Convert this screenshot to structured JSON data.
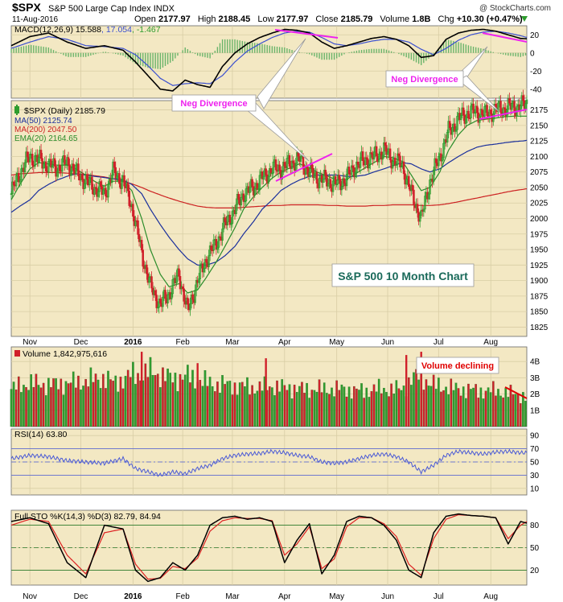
{
  "header": {
    "symbol": "$SPX",
    "name": "S&P 500 Large Cap Index",
    "exchange": "INDX",
    "watermark": "@ StockCharts.com",
    "date": "11-Aug-2016",
    "open_label": "Open",
    "open": "2177.97",
    "high_label": "High",
    "high": "2188.45",
    "low_label": "Low",
    "low": "2177.97",
    "close_label": "Close",
    "close": "2185.79",
    "volume_label": "Volume",
    "volume": "1.8B",
    "chg_label": "Chg",
    "chg": "+10.30 (+0.47%)"
  },
  "colors": {
    "bg": "#f3e8c3",
    "up": "#2e9c2e",
    "down": "#d0202a",
    "macd": "#000000",
    "signal": "#3a4fd0",
    "ma50": "#1a2f9c",
    "ma200": "#cc2222",
    "ema20": "#2a8c2a",
    "rsi": "#4a5ad6",
    "stoK": "#000000",
    "stoD": "#dd2222",
    "annotation": "#ee22ee"
  },
  "legends": {
    "macd": {
      "label": "MACD(12,26,9)",
      "v1": "15.588",
      "v2": "17.054",
      "v3": "-1.467"
    },
    "price": [
      {
        "text": "$SPX (Daily) 2185.79"
      },
      {
        "text": "MA(50) 2125.74"
      },
      {
        "text": "MA(200) 2047.50"
      },
      {
        "text": "EMA(20) 2164.65"
      }
    ],
    "volume": "Volume 1,842,975,616",
    "rsi": "RSI(14) 63.80",
    "sto": "Full STO %K(14,3) %D(3) 82.79, 84.94"
  },
  "annotations": {
    "neg_div_1": "Neg Divergence",
    "neg_div_2": "Neg Divergence",
    "volume": "Volume declining",
    "chart_title": "S&P 500 10 Month Chart"
  },
  "x_axis": {
    "month_labels": [
      "Nov",
      "Dec",
      "2016",
      "Feb",
      "Mar",
      "Apr",
      "May",
      "Jun",
      "Jul",
      "Aug"
    ],
    "month_start_days": [
      15,
      56,
      98,
      138,
      178,
      220,
      262,
      303,
      344,
      386
    ],
    "total_days": 415
  },
  "chart_data": [
    {
      "type": "line",
      "panel": "MACD",
      "y_ticks": [
        "20",
        "0",
        "-20",
        "-40"
      ],
      "ylim": [
        -50,
        30
      ],
      "x_days": [
        0,
        15,
        30,
        45,
        60,
        75,
        90,
        100,
        110,
        120,
        130,
        140,
        150,
        160,
        170,
        180,
        190,
        200,
        210,
        220,
        230,
        240,
        250,
        260,
        270,
        280,
        290,
        300,
        310,
        320,
        330,
        340,
        350,
        360,
        370,
        380,
        390,
        400,
        410,
        415
      ],
      "series": [
        {
          "name": "MACD",
          "values": [
            8,
            18,
            22,
            12,
            5,
            8,
            3,
            -10,
            -25,
            -40,
            -42,
            -30,
            -35,
            -38,
            -15,
            0,
            10,
            17,
            22,
            26,
            25,
            22,
            12,
            5,
            8,
            12,
            16,
            18,
            15,
            8,
            -5,
            -3,
            15,
            22,
            25,
            26,
            24,
            20,
            16,
            15.6
          ]
        },
        {
          "name": "Signal",
          "values": [
            5,
            12,
            18,
            15,
            8,
            7,
            5,
            -2,
            -14,
            -28,
            -36,
            -34,
            -33,
            -34,
            -25,
            -10,
            2,
            10,
            17,
            22,
            24,
            23,
            17,
            10,
            8,
            10,
            13,
            15,
            15,
            12,
            4,
            -2,
            5,
            14,
            20,
            23,
            24,
            22,
            19,
            17.1
          ]
        }
      ]
    },
    {
      "type": "line",
      "panel": "Price",
      "y_ticks": [
        1825,
        1850,
        1875,
        1900,
        1925,
        1950,
        1975,
        2000,
        2025,
        2050,
        2075,
        2100,
        2125,
        2150,
        2175
      ],
      "ylim": [
        1810,
        2190
      ],
      "x_days": [
        0,
        7,
        15,
        22,
        30,
        37,
        45,
        52,
        60,
        67,
        75,
        82,
        90,
        97,
        105,
        112,
        120,
        127,
        135,
        142,
        150,
        157,
        165,
        172,
        180,
        187,
        195,
        202,
        210,
        217,
        225,
        232,
        240,
        247,
        255,
        262,
        270,
        277,
        285,
        292,
        300,
        307,
        315,
        322,
        330,
        337,
        345,
        352,
        360,
        367,
        375,
        382,
        390,
        397,
        405,
        412,
        415
      ],
      "series": [
        {
          "name": "$SPX (Daily)",
          "values": [
            2040,
            2075,
            2100,
            2095,
            2085,
            2082,
            2090,
            2075,
            2060,
            2050,
            2040,
            2075,
            2060,
            2020,
            1945,
            1890,
            1860,
            1880,
            1910,
            1850,
            1900,
            1935,
            1960,
            1990,
            2015,
            2040,
            2050,
            2065,
            2080,
            2080,
            2090,
            2095,
            2075,
            2065,
            2060,
            2055,
            2065,
            2085,
            2095,
            2100,
            2110,
            2095,
            2085,
            2040,
            2000,
            2060,
            2100,
            2140,
            2160,
            2170,
            2172,
            2168,
            2175,
            2178,
            2180,
            2182,
            2186
          ]
        },
        {
          "name": "MA(50)",
          "values": [
            2010,
            2020,
            2030,
            2045,
            2055,
            2062,
            2068,
            2072,
            2070,
            2068,
            2066,
            2064,
            2062,
            2055,
            2040,
            2015,
            1990,
            1970,
            1950,
            1935,
            1925,
            1925,
            1930,
            1940,
            1955,
            1975,
            1995,
            2015,
            2030,
            2045,
            2055,
            2062,
            2068,
            2070,
            2070,
            2070,
            2068,
            2068,
            2070,
            2075,
            2080,
            2085,
            2090,
            2088,
            2080,
            2075,
            2080,
            2090,
            2100,
            2108,
            2115,
            2118,
            2120,
            2122,
            2124,
            2125,
            2126
          ]
        },
        {
          "name": "MA(200)",
          "values": [
            2070,
            2072,
            2073,
            2074,
            2074,
            2074,
            2073,
            2072,
            2071,
            2069,
            2067,
            2064,
            2060,
            2056,
            2050,
            2044,
            2038,
            2033,
            2028,
            2024,
            2020,
            2018,
            2017,
            2017,
            2017,
            2018,
            2019,
            2020,
            2021,
            2021,
            2022,
            2022,
            2022,
            2022,
            2021,
            2021,
            2020,
            2020,
            2020,
            2021,
            2021,
            2022,
            2022,
            2022,
            2021,
            2021,
            2022,
            2024,
            2027,
            2030,
            2033,
            2036,
            2039,
            2042,
            2045,
            2047,
            2048
          ]
        },
        {
          "name": "EMA(20)",
          "values": [
            2030,
            2055,
            2080,
            2090,
            2088,
            2086,
            2086,
            2080,
            2070,
            2060,
            2052,
            2060,
            2060,
            2045,
            2000,
            1950,
            1910,
            1890,
            1895,
            1880,
            1885,
            1905,
            1930,
            1955,
            1985,
            2015,
            2035,
            2050,
            2065,
            2075,
            2082,
            2088,
            2082,
            2074,
            2068,
            2062,
            2063,
            2072,
            2082,
            2090,
            2100,
            2098,
            2092,
            2070,
            2045,
            2050,
            2075,
            2110,
            2135,
            2150,
            2158,
            2160,
            2162,
            2164,
            2165,
            2165,
            2165
          ]
        }
      ]
    },
    {
      "type": "bar",
      "panel": "Volume",
      "y_ticks": [
        "4B",
        "3B",
        "2B",
        "1B"
      ],
      "ylim": [
        0,
        4.9
      ],
      "x_days": [
        0,
        7,
        15,
        22,
        30,
        37,
        45,
        52,
        60,
        67,
        75,
        82,
        90,
        97,
        105,
        112,
        120,
        127,
        135,
        142,
        150,
        157,
        165,
        172,
        180,
        187,
        195,
        202,
        210,
        217,
        225,
        232,
        240,
        247,
        255,
        262,
        270,
        277,
        285,
        292,
        300,
        307,
        315,
        322,
        330,
        337,
        345,
        352,
        360,
        367,
        375,
        382,
        390,
        397,
        405,
        412,
        415
      ],
      "values": [
        2.3,
        2.5,
        2.7,
        2.6,
        2.6,
        2.6,
        2.7,
        2.7,
        2.8,
        2.9,
        3.0,
        2.7,
        2.9,
        3.2,
        3.2,
        3.4,
        3.2,
        3.0,
        3.0,
        3.1,
        2.9,
        2.7,
        2.6,
        2.6,
        2.5,
        2.5,
        2.4,
        2.4,
        2.5,
        2.4,
        2.4,
        2.3,
        2.3,
        2.3,
        2.3,
        2.3,
        2.3,
        2.2,
        2.2,
        2.3,
        2.3,
        2.3,
        2.3,
        2.9,
        3.2,
        2.6,
        2.5,
        2.4,
        2.3,
        2.3,
        2.2,
        2.2,
        2.2,
        2.1,
        2.0,
        1.9,
        1.8
      ]
    },
    {
      "type": "line",
      "panel": "RSI",
      "y_ticks": [
        90,
        70,
        50,
        30,
        10
      ],
      "ylim": [
        0,
        100
      ],
      "x_days": [
        0,
        15,
        30,
        45,
        60,
        75,
        90,
        100,
        110,
        120,
        130,
        140,
        150,
        160,
        170,
        180,
        190,
        200,
        210,
        220,
        230,
        240,
        250,
        260,
        270,
        280,
        290,
        300,
        310,
        320,
        330,
        340,
        350,
        360,
        370,
        380,
        390,
        400,
        410,
        415
      ],
      "values": [
        55,
        60,
        58,
        52,
        50,
        48,
        55,
        40,
        35,
        30,
        35,
        32,
        40,
        45,
        55,
        60,
        62,
        63,
        66,
        64,
        60,
        58,
        50,
        48,
        50,
        55,
        60,
        62,
        58,
        50,
        35,
        45,
        60,
        66,
        64,
        62,
        65,
        66,
        64,
        63.8
      ]
    },
    {
      "type": "line",
      "panel": "Full STO",
      "y_ticks": [
        80,
        50,
        20
      ],
      "ylim": [
        0,
        100
      ],
      "x_days": [
        0,
        15,
        30,
        45,
        60,
        75,
        90,
        100,
        110,
        120,
        130,
        140,
        150,
        160,
        170,
        180,
        190,
        200,
        210,
        220,
        230,
        240,
        250,
        260,
        270,
        280,
        290,
        300,
        310,
        320,
        330,
        340,
        350,
        360,
        370,
        380,
        390,
        400,
        410,
        415
      ],
      "series": [
        {
          "name": "%K",
          "values": [
            85,
            90,
            82,
            30,
            10,
            80,
            75,
            20,
            5,
            10,
            30,
            20,
            40,
            80,
            90,
            92,
            88,
            90,
            85,
            30,
            60,
            82,
            15,
            40,
            85,
            92,
            90,
            80,
            60,
            20,
            10,
            70,
            92,
            95,
            93,
            92,
            90,
            55,
            85,
            82.8
          ]
        },
        {
          "name": "%D",
          "values": [
            80,
            88,
            85,
            40,
            15,
            70,
            75,
            28,
            8,
            9,
            25,
            22,
            36,
            72,
            86,
            90,
            89,
            89,
            86,
            40,
            55,
            78,
            22,
            35,
            78,
            90,
            90,
            82,
            65,
            28,
            13,
            62,
            88,
            94,
            93,
            92,
            90,
            62,
            80,
            84.9
          ]
        }
      ]
    }
  ]
}
